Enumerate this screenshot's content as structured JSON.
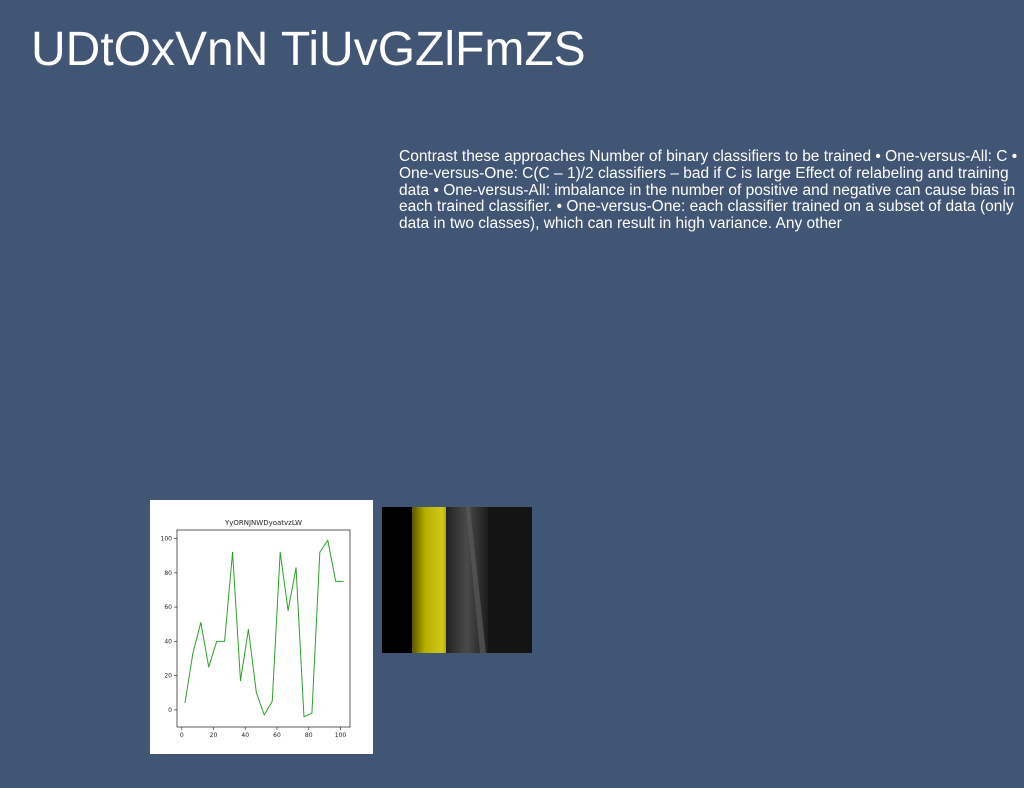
{
  "slide": {
    "title": "UDtOxVnN TiUvGZlFmZS",
    "body": "Contrast these approaches Number of binary classifiers to be trained • One-versus-All: C • One-versus-One: C(C – 1)/2 classifiers – bad if C is large Effect of relabeling and training data • One-versus-All: imbalance in the number of positive and negative can cause bias in each trained classifier. • One-versus-One: each classifier trained on a subset of data (only data in two classes), which can result in high variance. Any other"
  },
  "chart_data": {
    "type": "line",
    "title": "YyORNJNWDyoatvzLW",
    "xlabel": "",
    "ylabel": "",
    "xlim": [
      -3,
      106
    ],
    "ylim": [
      -10,
      105
    ],
    "xticks": [
      0,
      20,
      40,
      60,
      80,
      100
    ],
    "yticks": [
      0,
      20,
      40,
      60,
      80,
      100
    ],
    "grid": false,
    "series": [
      {
        "color": "#2ca02c",
        "x": [
          2,
          7,
          12,
          17,
          22,
          27,
          32,
          37,
          42,
          47,
          52,
          57,
          62,
          67,
          72,
          77,
          82,
          87,
          92,
          97,
          102
        ],
        "y": [
          4,
          33,
          51,
          25,
          40,
          40,
          92,
          17,
          47,
          10,
          -3,
          5,
          92,
          58,
          83,
          -4,
          -2,
          92,
          99,
          75,
          75
        ]
      }
    ]
  },
  "photo": {
    "colors": {
      "background": "#151515",
      "yellow_band": "#b8b000",
      "grey_band": "#3a3a3a"
    }
  }
}
